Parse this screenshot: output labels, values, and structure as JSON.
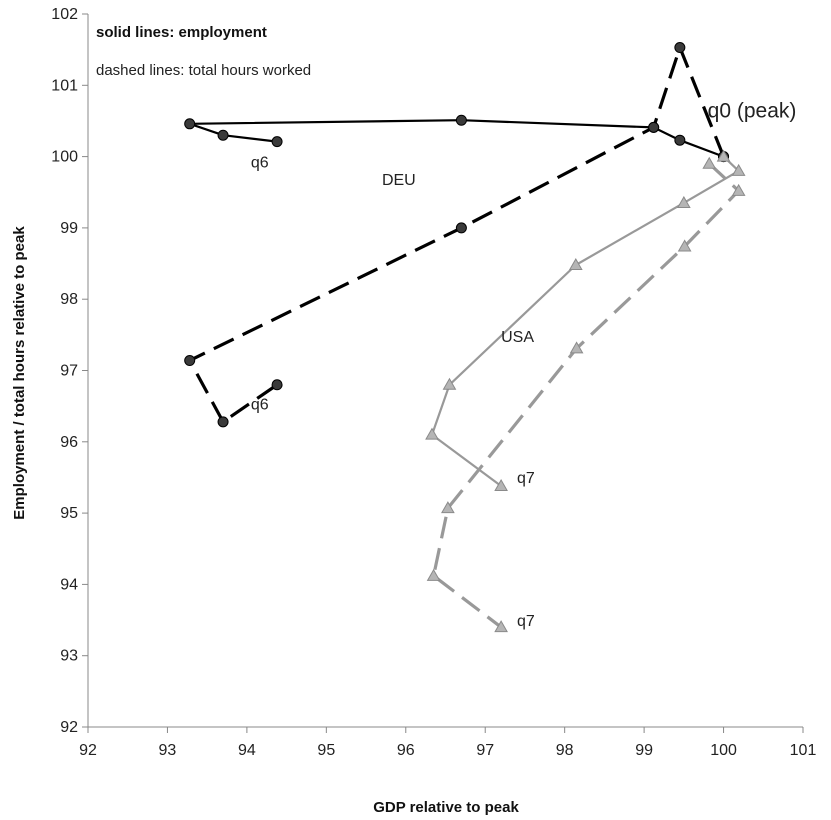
{
  "chart_data": {
    "type": "line",
    "xlabel": "GDP relative to peak",
    "ylabel": "Employment / total hours relative to peak",
    "xlim": [
      92,
      101
    ],
    "ylim": [
      92,
      102
    ],
    "x_ticks": [
      "92",
      "93",
      "94",
      "95",
      "96",
      "97",
      "98",
      "99",
      "100",
      "101"
    ],
    "y_ticks": [
      "92",
      "93",
      "94",
      "95",
      "96",
      "97",
      "98",
      "99",
      "100",
      "101",
      "102"
    ],
    "grid": false,
    "notes": [
      "solid lines: employment",
      "dashed lines: total hours worked"
    ],
    "series": [
      {
        "name": "DEU",
        "measure": "employment",
        "line_style": "solid",
        "color": "#000000",
        "marker": "circle",
        "points": [
          [
            100.0,
            100.0
          ],
          [
            99.45,
            100.23
          ],
          [
            99.12,
            100.41
          ],
          [
            96.7,
            100.51
          ],
          [
            93.28,
            100.46
          ],
          [
            93.7,
            100.3
          ],
          [
            94.38,
            100.21
          ]
        ]
      },
      {
        "name": "DEU",
        "measure": "total hours worked",
        "line_style": "dashed",
        "color": "#000000",
        "marker": "circle",
        "points": [
          [
            100.0,
            100.0
          ],
          [
            99.45,
            101.53
          ],
          [
            99.12,
            100.41
          ],
          [
            96.7,
            99.0
          ],
          [
            93.28,
            97.14
          ],
          [
            93.7,
            96.28
          ],
          [
            94.38,
            96.8
          ]
        ]
      },
      {
        "name": "USA",
        "measure": "employment",
        "line_style": "solid",
        "color": "#999999",
        "marker": "triangle",
        "points": [
          [
            100.0,
            100.0
          ],
          [
            100.19,
            99.8
          ],
          [
            99.5,
            99.35
          ],
          [
            98.14,
            98.48
          ],
          [
            96.55,
            96.8
          ],
          [
            96.33,
            96.1
          ],
          [
            97.2,
            95.38
          ]
        ]
      },
      {
        "name": "USA",
        "measure": "total hours worked",
        "line_style": "dashed",
        "color": "#999999",
        "marker": "triangle",
        "points": [
          [
            99.82,
            99.9
          ],
          [
            100.19,
            99.52
          ],
          [
            99.51,
            98.74
          ],
          [
            98.15,
            97.31
          ],
          [
            96.53,
            95.07
          ],
          [
            96.35,
            94.12
          ],
          [
            97.2,
            93.4
          ]
        ]
      }
    ],
    "annotations": [
      {
        "text": "q6",
        "x": 94.05,
        "y": 99.85,
        "style": "normal"
      },
      {
        "text": "DEU",
        "x": 95.7,
        "y": 99.6,
        "style": "normal"
      },
      {
        "text": "q0 (peak)",
        "x": 99.8,
        "y": 100.55,
        "style": "large"
      },
      {
        "text": "USA",
        "x": 97.2,
        "y": 97.4,
        "style": "normal"
      },
      {
        "text": "q6",
        "x": 94.05,
        "y": 96.45,
        "style": "normal"
      },
      {
        "text": "q7",
        "x": 97.4,
        "y": 95.42,
        "style": "normal"
      },
      {
        "text": "q7",
        "x": 97.4,
        "y": 93.42,
        "style": "normal"
      }
    ]
  }
}
